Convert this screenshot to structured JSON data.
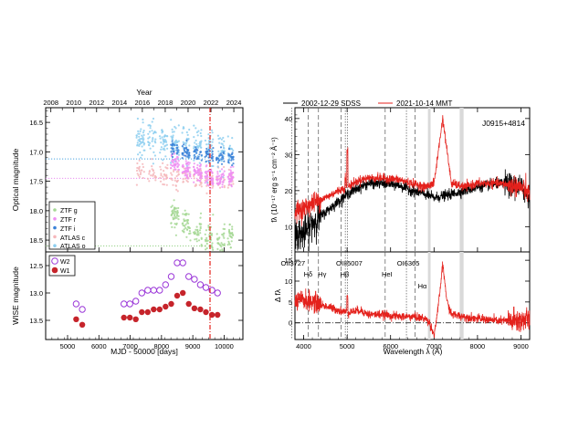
{
  "chart_data": [
    {
      "type": "scatter",
      "panel": "top-left",
      "xlabel_top": "Year",
      "ylabel": "Optical magnitude",
      "xlim": [
        4300,
        10600
      ],
      "ylim": [
        18.7,
        16.25
      ],
      "y_reversed": true,
      "xticks": [
        5000,
        6000,
        7000,
        8000,
        9000,
        10000
      ],
      "yticks": [
        16.5,
        17.0,
        17.5,
        18.0,
        18.5
      ],
      "ytick_labels": [
        "16.5",
        "17.0",
        "17.5",
        "18.0",
        "18.5"
      ],
      "top_year_ticks": [
        "2008",
        "2010",
        "2012",
        "2014",
        "2016",
        "2018",
        "2020",
        "2022",
        "2024"
      ],
      "top_year_mjd": [
        4466,
        5197,
        5927,
        6658,
        7388,
        8119,
        8849,
        9580,
        10310
      ],
      "vline_mjd": 9550,
      "hlines": [
        {
          "y": 17.12,
          "color": "#4aa3e0",
          "style": "dotted"
        },
        {
          "y": 17.45,
          "color": "#e98ff0",
          "style": "dotted"
        },
        {
          "y": 18.6,
          "color": "#9ad38b",
          "style": "dotted"
        }
      ],
      "series": [
        {
          "name": "ZTF g",
          "color": "#a6d895",
          "x_start": 8250,
          "x_end": 10300,
          "mean": [
            18.05,
            18.2,
            18.35,
            18.48,
            18.55,
            18.45
          ],
          "scatter": 0.12,
          "density": 300
        },
        {
          "name": "ZTF r",
          "color": "#ee8ff2",
          "x_start": 8250,
          "x_end": 10300,
          "mean": [
            17.2,
            17.3,
            17.35,
            17.4,
            17.45,
            17.42
          ],
          "scatter": 0.08,
          "density": 350
        },
        {
          "name": "ZTF i",
          "color": "#3b82d8",
          "x_start": 8250,
          "x_end": 10300,
          "mean": [
            16.95,
            17.0,
            17.02,
            17.05,
            17.08,
            17.1
          ],
          "scatter": 0.06,
          "density": 220
        },
        {
          "name": "ATLAS c",
          "color": "#f5b7bb",
          "x_start": 7200,
          "x_end": 10300,
          "mean": [
            17.35,
            17.4,
            17.45,
            17.47,
            17.47,
            17.48
          ],
          "scatter": 0.1,
          "density": 260
        },
        {
          "name": "ATLAS o",
          "color": "#8ecff0",
          "x_start": 7200,
          "x_end": 10300,
          "mean": [
            16.75,
            16.8,
            16.85,
            16.9,
            16.95,
            16.98
          ],
          "scatter": 0.15,
          "density": 380
        }
      ],
      "legend": [
        "ZTF g",
        "ZTF r",
        "ZTF i",
        "ATLAS c",
        "ATLAS o"
      ],
      "legend_position": "bottom-left"
    },
    {
      "type": "scatter",
      "panel": "bottom-left",
      "xlabel": "MJD - 50000 [days]",
      "ylabel": "WISE magnitude",
      "xlim": [
        4300,
        10600
      ],
      "ylim": [
        13.85,
        12.25
      ],
      "y_reversed": true,
      "xticks": [
        5000,
        6000,
        7000,
        8000,
        9000,
        10000
      ],
      "xtick_labels": [
        "5000",
        "6000",
        "7000",
        "8000",
        "9000",
        "10000"
      ],
      "yticks": [
        12.5,
        13.0,
        13.5
      ],
      "ytick_labels": [
        "12.5",
        "13.0",
        "13.5"
      ],
      "vline_mjd": 9550,
      "series": [
        {
          "name": "W2",
          "color": "#9b37d8",
          "marker": "open-circle",
          "x": [
            5275,
            5470,
            6800,
            6990,
            7180,
            7370,
            7560,
            7750,
            7940,
            8130,
            8310,
            8500,
            8680,
            8870,
            9050,
            9240,
            9420,
            9610,
            9790
          ],
          "y": [
            13.2,
            13.3,
            13.2,
            13.2,
            13.15,
            13.0,
            12.95,
            12.95,
            12.95,
            12.85,
            12.7,
            12.45,
            12.45,
            12.7,
            12.75,
            12.85,
            12.9,
            12.95,
            13.0
          ]
        },
        {
          "name": "W1",
          "color": "#c6242b",
          "marker": "filled-circle",
          "x": [
            5275,
            5470,
            6800,
            6990,
            7180,
            7370,
            7560,
            7750,
            7940,
            8130,
            8310,
            8500,
            8680,
            8870,
            9050,
            9240,
            9420,
            9610,
            9790
          ],
          "y": [
            13.48,
            13.58,
            13.45,
            13.45,
            13.48,
            13.35,
            13.35,
            13.3,
            13.3,
            13.25,
            13.2,
            13.05,
            13.0,
            13.2,
            13.28,
            13.3,
            13.35,
            13.4,
            13.4
          ]
        }
      ],
      "legend": [
        "W2",
        "W1"
      ],
      "legend_position": "top-left"
    },
    {
      "type": "line",
      "panel": "top-right",
      "title_label": "J0915+4814",
      "ylabel": "fλ (10⁻¹⁷ erg s⁻¹ cm⁻² Å⁻¹)",
      "xlim": [
        3800,
        9200
      ],
      "ylim": [
        3,
        43
      ],
      "xticks": [
        4000,
        5000,
        6000,
        7000,
        8000,
        9000
      ],
      "yticks": [
        10,
        20,
        30,
        40
      ],
      "ytick_labels": [
        "10",
        "20",
        "30",
        "40"
      ],
      "series": [
        {
          "name": "2002-12-29 SDSS",
          "color": "#000000",
          "x": [
            3800,
            4000,
            4200,
            4500,
            4800,
            5000,
            5300,
            5500,
            5800,
            6200,
            6500,
            6800,
            7000,
            7200,
            7400,
            7700,
            8000,
            8500,
            9000,
            9200
          ],
          "y": [
            8,
            8,
            11,
            14,
            17,
            19,
            21,
            22,
            22,
            21.5,
            20,
            19,
            18,
            18.5,
            19,
            20,
            21,
            22,
            21,
            18
          ]
        },
        {
          "name": "2021-10-14 MMT",
          "color": "#e4211c",
          "x": [
            3800,
            4000,
            4200,
            4500,
            4800,
            5000,
            5300,
            5500,
            5800,
            6200,
            6500,
            6800,
            7000,
            7200,
            7400,
            7700,
            8000,
            8500,
            9000,
            9200
          ],
          "y": [
            14,
            15,
            16.5,
            18,
            20,
            21,
            23,
            23.5,
            23.5,
            23,
            22,
            21,
            22,
            40,
            22,
            21,
            22,
            22,
            21,
            19
          ]
        }
      ],
      "legend": [
        "2002-12-29 SDSS",
        "2021-10-14 MMT"
      ],
      "legend_position": "top"
    },
    {
      "type": "line",
      "panel": "bottom-right",
      "xlabel": "Wavelength λ (Å)",
      "ylabel": "Δ fλ",
      "xlim": [
        3800,
        9200
      ],
      "ylim": [
        -4,
        17
      ],
      "xticks": [
        4000,
        5000,
        6000,
        7000,
        8000,
        9000
      ],
      "xtick_labels": [
        "4000",
        "5000",
        "6000",
        "7000",
        "8000",
        "9000"
      ],
      "yticks": [
        0,
        5,
        10,
        15
      ],
      "ytick_labels": [
        "0",
        "5",
        "10",
        "15"
      ],
      "series": [
        {
          "name": "difference",
          "color": "#e4211c",
          "x": [
            3800,
            4000,
            4200,
            4500,
            4800,
            5000,
            5300,
            5500,
            5800,
            6200,
            6500,
            6800,
            6900,
            7000,
            7100,
            7200,
            7300,
            7400,
            7700,
            8000,
            8500,
            9000,
            9200
          ],
          "y": [
            5,
            5.5,
            5,
            4,
            3,
            2.5,
            3,
            2,
            2,
            1.5,
            1.5,
            1,
            0,
            -3,
            4,
            14,
            5,
            2,
            1.5,
            1,
            0.5,
            0.5,
            1
          ]
        }
      ],
      "line_labels": [
        {
          "text": "OII3727",
          "x": 3727
        },
        {
          "text": "Hδ",
          "x": 4102
        },
        {
          "text": "Hγ",
          "x": 4341
        },
        {
          "text": "OIII5007",
          "x": 5007
        },
        {
          "text": "Hβ",
          "x": 4861
        },
        {
          "text": "HeI",
          "x": 5876
        },
        {
          "text": "OI6365",
          "x": 6365
        },
        {
          "text": "Hα",
          "x": 6563
        }
      ]
    }
  ],
  "figure": {
    "left_top_label": "Year",
    "left_top_ticks": [
      "2008",
      "2010",
      "2012",
      "2014",
      "2016",
      "2018",
      "2020",
      "2022",
      "2024"
    ],
    "ytitle_optical": "Optical magnitude",
    "ytitle_wise": "WISE magnitude",
    "xtitle_mjd": "MJD - 50000 [days]",
    "legend_optical": [
      "ZTF g",
      "ZTF r",
      "ZTF i",
      "ATLAS c",
      "ATLAS o"
    ],
    "legend_wise": [
      "W2",
      "W1"
    ],
    "spec_legend": [
      "2002-12-29 SDSS",
      "2021-10-14 MMT"
    ],
    "spec_object": "J0915+4814",
    "ytitle_flux": "fλ (10⁻¹⁷ erg s⁻¹ cm⁻² Å⁻¹)",
    "ytitle_delta": "Δ fλ",
    "xtitle_wavelength": "Wavelength λ (Å)",
    "line_labels": [
      "OII3727",
      "Hδ",
      "Hγ",
      "OIII5007",
      "Hβ",
      "HeI",
      "OI6365",
      "Hα"
    ],
    "colors": {
      "ztf_g": "#a6d895",
      "ztf_r": "#ee8ff2",
      "ztf_i": "#3b82d8",
      "atlas_c": "#f5b7bb",
      "atlas_o": "#8ecff0",
      "w2": "#9b37d8",
      "w1": "#c6242b",
      "sdss": "#000000",
      "mmt": "#e4211c",
      "vline": "#e4211c"
    }
  }
}
